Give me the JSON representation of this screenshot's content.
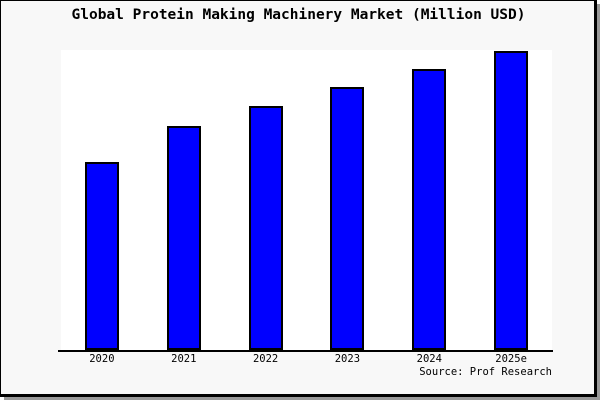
{
  "title": "Global Protein Making Machinery Market (Million USD)",
  "source": "Source: Prof Research",
  "colors": {
    "canvas_background": "#f8f8f8",
    "plot_background": "#ffffff",
    "frame_border": "#000000",
    "drop_shadow": "#999999",
    "text": "#000000",
    "bar_fill": "#0000ff",
    "bar_border": "#000000"
  },
  "chart_data": {
    "type": "bar",
    "title": "Global Protein Making Machinery Market (Million USD)",
    "categories": [
      "2020",
      "2021",
      "2022",
      "2023",
      "2024",
      "2025e"
    ],
    "values": [
      188,
      224,
      244,
      263,
      281,
      299
    ],
    "value_note": "No y-axis, gridlines or data labels are shown in the image; values are relative bar heights (pixels above baseline)",
    "xlabel": "",
    "ylabel": "",
    "ylim": [
      0,
      300
    ],
    "grid": false,
    "legend": false,
    "bar_color": "#0000ff",
    "bar_border_color": "#000000",
    "annotations": [
      "Source: Prof Research"
    ]
  }
}
